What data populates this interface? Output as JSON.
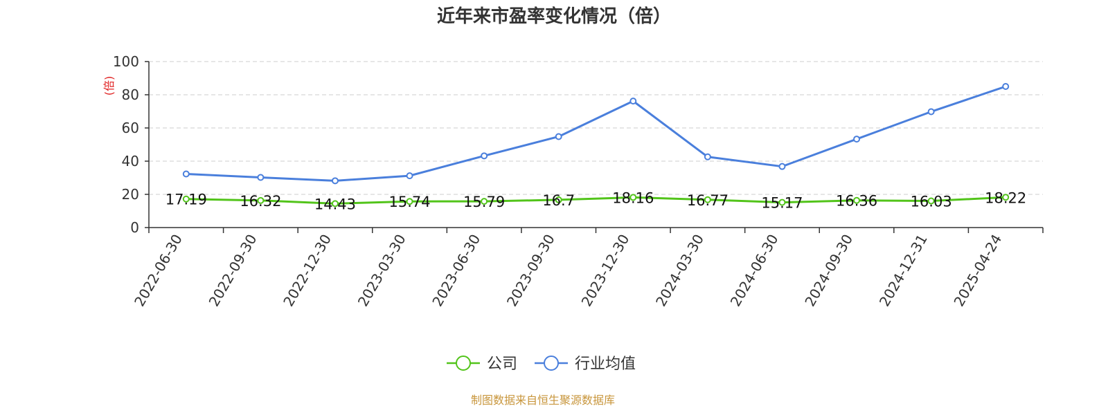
{
  "chart_data": {
    "type": "line",
    "title": "近年来市盈率变化情况（倍）",
    "ylabel": "(倍)",
    "xlabel": "",
    "ylim": [
      0,
      100
    ],
    "yticks": [
      0,
      20,
      40,
      60,
      80,
      100
    ],
    "grid": true,
    "legend_position": "bottom",
    "categories": [
      "2022-06-30",
      "2022-09-30",
      "2022-12-30",
      "2023-03-30",
      "2023-06-30",
      "2023-09-30",
      "2023-12-30",
      "2024-03-30",
      "2024-06-30",
      "2024-09-30",
      "2024-12-31",
      "2025-04-24"
    ],
    "series": [
      {
        "name": "公司",
        "color": "#52c41a",
        "values": [
          17.19,
          16.32,
          14.43,
          15.74,
          15.79,
          16.7,
          18.16,
          16.77,
          15.17,
          16.36,
          16.03,
          18.22
        ],
        "labels": [
          "17.19",
          "16.32",
          "14.43",
          "15.74",
          "15.79",
          "16.7",
          "18.16",
          "16.77",
          "15.17",
          "16.36",
          "16.03",
          "18.22"
        ]
      },
      {
        "name": "行业均值",
        "color": "#4a7fdc",
        "values": [
          32.3,
          30.2,
          28.2,
          31.2,
          43.2,
          54.8,
          76.2,
          42.6,
          36.8,
          53.3,
          69.8,
          85.0
        ]
      }
    ],
    "source": "制图数据来自恒生聚源数据库"
  }
}
